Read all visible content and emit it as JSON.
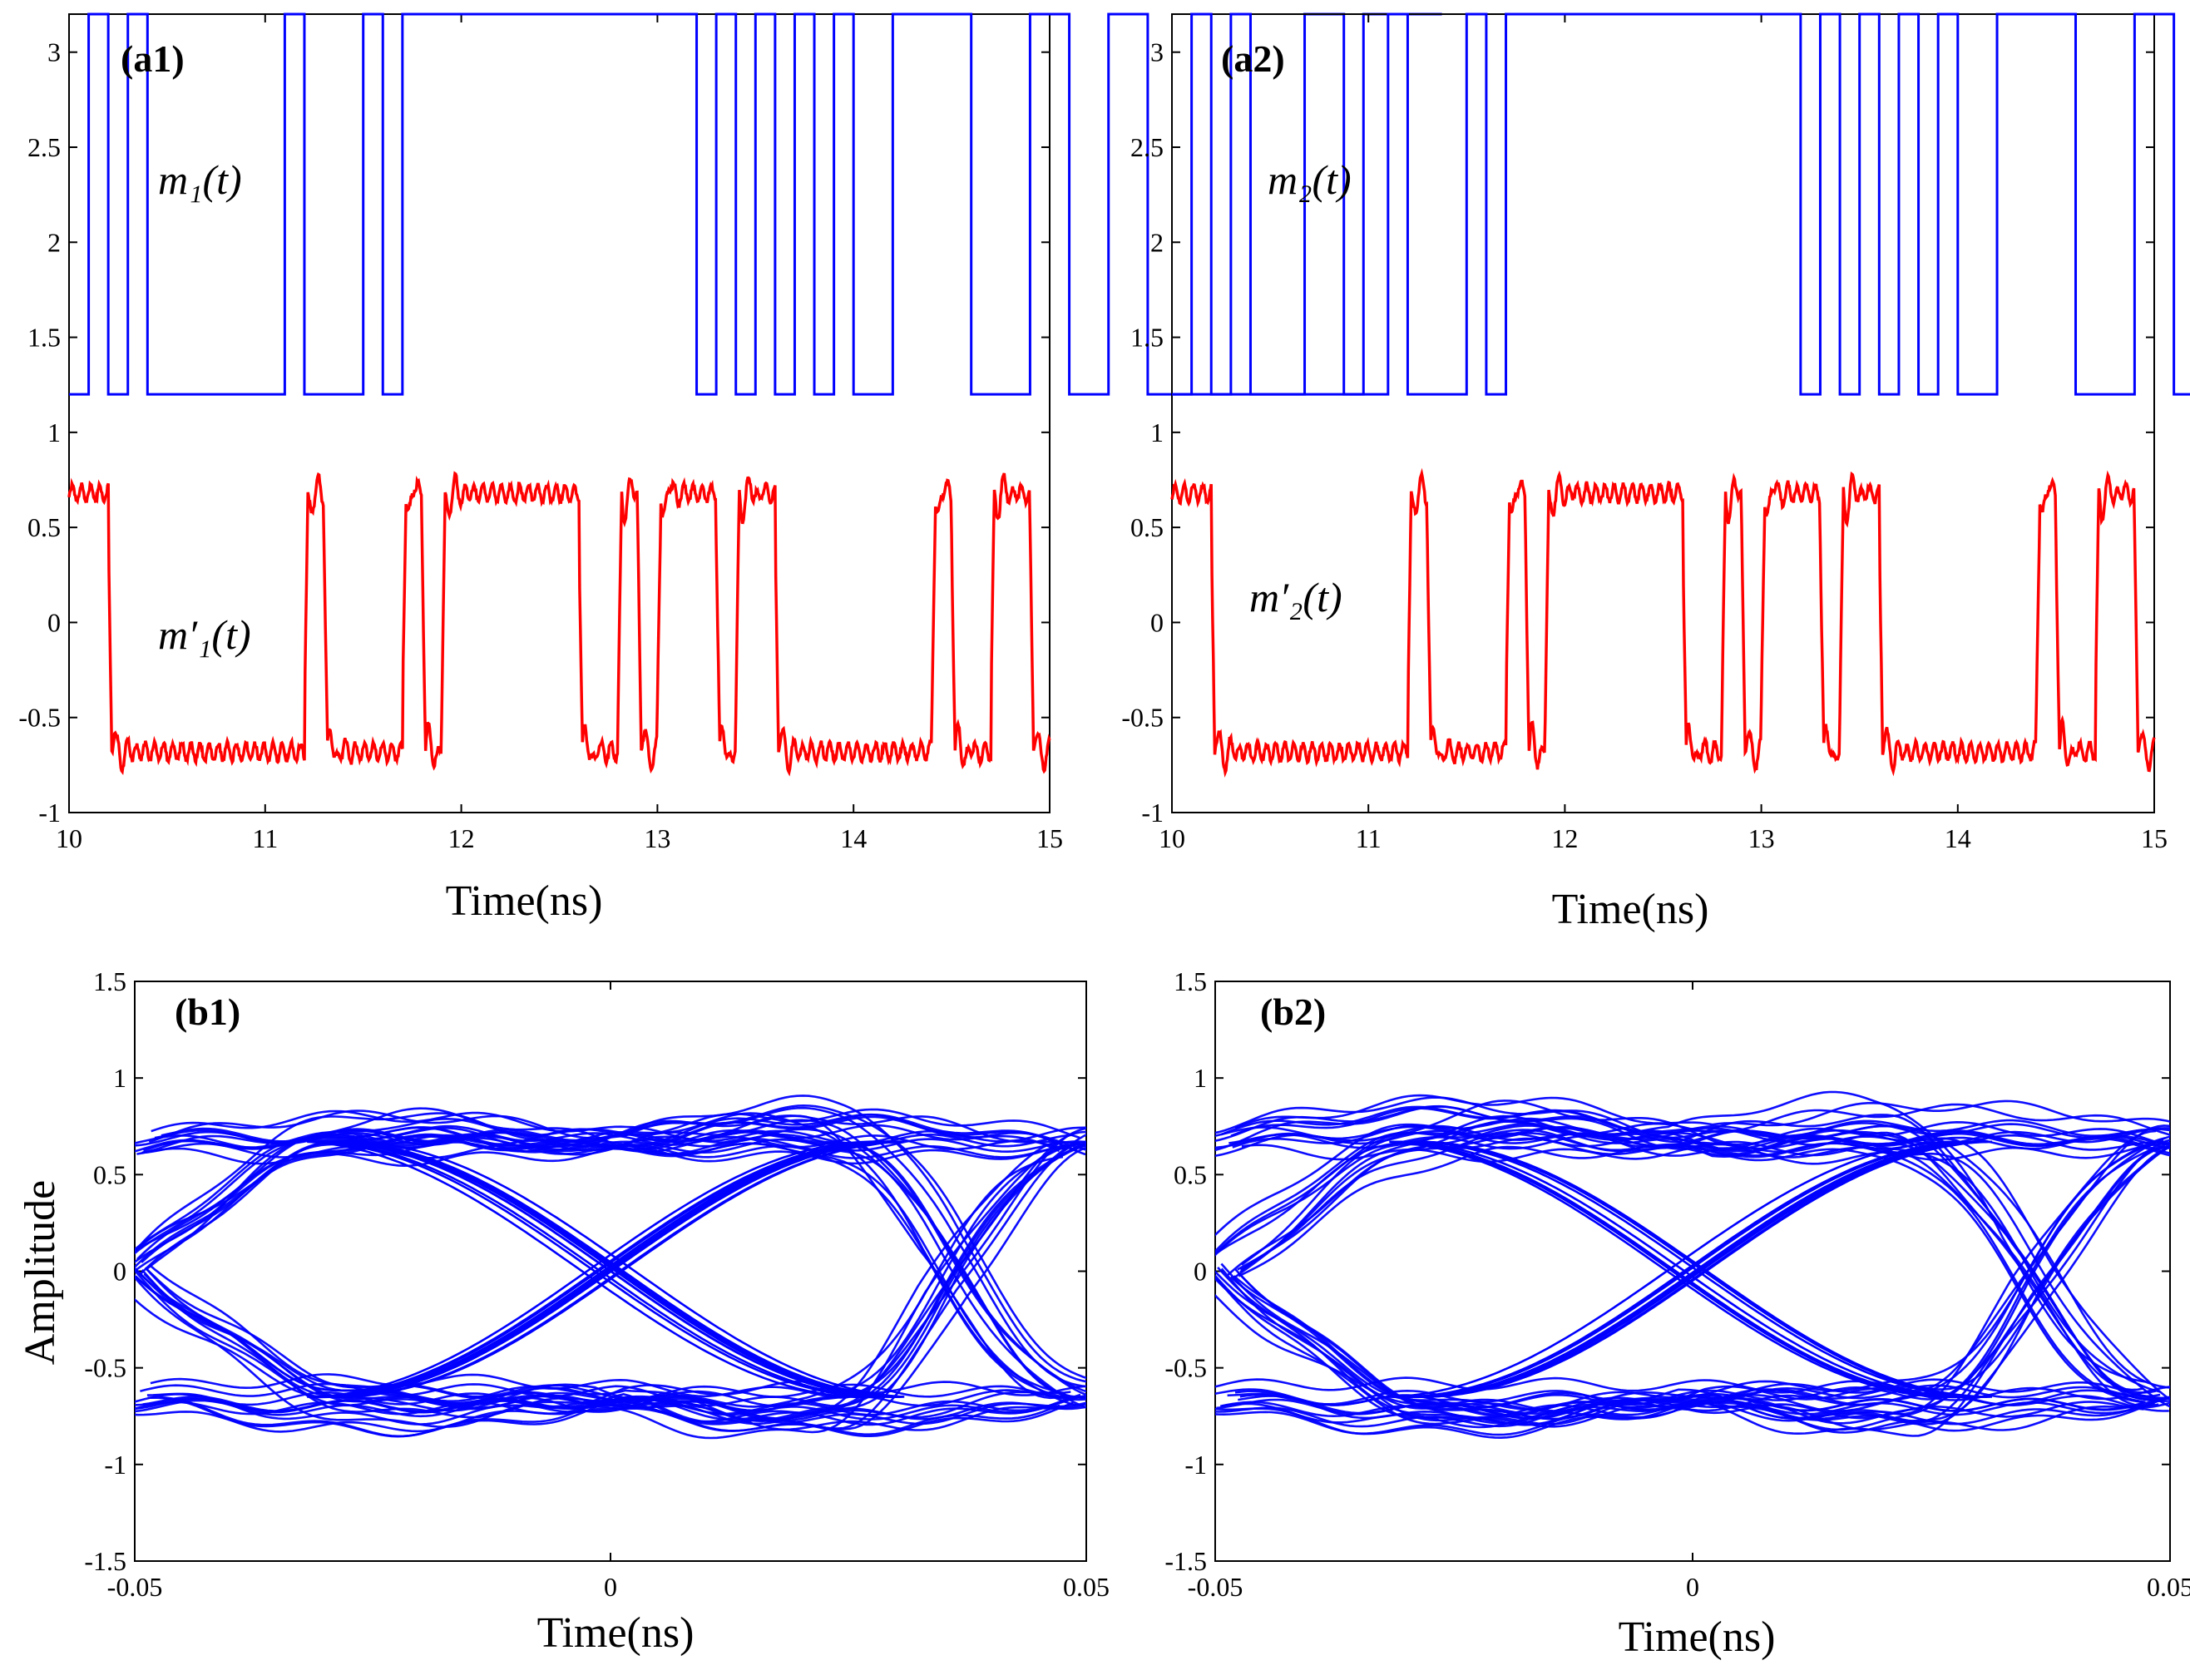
{
  "colors": {
    "digital": "#0000ff",
    "analog": "#ff0000",
    "eye": "#0000ff",
    "axis": "#000000"
  },
  "chart_data": [
    {
      "id": "a1",
      "type": "line",
      "panel_label": "(a1)",
      "xlabel": "Time(ns)",
      "ylabel": "",
      "xlim": [
        10,
        15
      ],
      "ylim": [
        -1,
        3.2
      ],
      "xticks": [
        10,
        11,
        12,
        13,
        14,
        15
      ],
      "xtick_labels": [
        "10",
        "11",
        "12",
        "13",
        "14",
        "15"
      ],
      "yticks": [
        -1,
        -0.5,
        0,
        0.5,
        1,
        1.5,
        2,
        2.5,
        3
      ],
      "ytick_labels": [
        "-1",
        "-0.5",
        "0",
        "0.5",
        "1",
        "1.5",
        "2",
        "2.5",
        "3"
      ],
      "bit_period": 0.1,
      "digital_low": 1.2,
      "digital_high": 3.2,
      "analog_low": -0.68,
      "analog_high": 0.68,
      "annotations": {
        "digital": "m₁(t)",
        "analog": "m′₁(t)"
      },
      "series": [
        {
          "name": "m1(t)",
          "role": "digital",
          "bits": [
            0,
            1,
            0,
            1,
            0,
            0,
            0,
            0,
            0,
            0,
            0,
            1,
            0,
            0,
            0,
            1,
            0,
            1,
            1,
            1,
            1,
            1,
            1,
            1,
            1,
            1,
            1,
            1,
            1,
            1,
            1,
            1,
            0,
            1,
            0,
            1,
            0,
            1,
            0,
            1,
            0,
            0,
            1,
            1,
            1,
            1,
            0,
            0,
            0,
            1,
            1,
            0,
            0,
            1,
            1,
            0,
            0,
            0,
            0,
            0,
            0,
            0,
            0,
            1,
            1,
            0,
            1,
            1,
            1,
            1
          ]
        },
        {
          "name": "m'1(t)",
          "role": "analog",
          "bits": [
            1,
            1,
            0,
            0,
            0,
            0,
            0,
            0,
            0,
            0,
            0,
            0,
            1,
            0,
            0,
            0,
            0,
            1,
            0,
            1,
            1,
            1,
            1,
            1,
            1,
            1,
            0,
            0,
            1,
            0,
            1,
            1,
            1,
            0,
            1,
            1,
            0,
            0,
            0,
            0,
            0,
            0,
            0,
            0,
            1,
            0,
            0,
            1,
            1,
            0,
            0,
            0,
            0,
            0,
            0,
            0,
            0,
            0,
            0,
            0,
            0,
            0,
            0,
            1,
            1,
            0,
            0,
            0,
            1,
            1
          ]
        }
      ]
    },
    {
      "id": "a2",
      "type": "line",
      "panel_label": "(a2)",
      "xlabel": "Time(ns)",
      "ylabel": "",
      "xlim": [
        10,
        15
      ],
      "ylim": [
        -1,
        3.2
      ],
      "xticks": [
        10,
        11,
        12,
        13,
        14,
        15
      ],
      "xtick_labels": [
        "10",
        "11",
        "12",
        "13",
        "14",
        "15"
      ],
      "yticks": [
        -1,
        -0.5,
        0,
        0.5,
        1,
        1.5,
        2,
        2.5,
        3
      ],
      "ytick_labels": [
        "-1",
        "-0.5",
        "0",
        "0.5",
        "1",
        "1.5",
        "2",
        "2.5",
        "3"
      ],
      "bit_period": 0.1,
      "digital_low": 1.2,
      "digital_high": 3.2,
      "analog_low": -0.68,
      "analog_high": 0.68,
      "annotations": {
        "digital": "m₂(t)",
        "analog": "m′₂(t)"
      },
      "series": [
        {
          "name": "m2(t)",
          "role": "digital",
          "bits": [
            0,
            1,
            0,
            1,
            0,
            0,
            0,
            0,
            0,
            0,
            0,
            1,
            0,
            0,
            0,
            1,
            0,
            1,
            1,
            1,
            1,
            1,
            1,
            1,
            1,
            1,
            1,
            1,
            1,
            1,
            1,
            1,
            0,
            1,
            0,
            1,
            0,
            1,
            0,
            1,
            0,
            0,
            1,
            1,
            1,
            1,
            0,
            0,
            0,
            1,
            1,
            0,
            0,
            1,
            1,
            0,
            0,
            0,
            0,
            0,
            0,
            0,
            0,
            1,
            1,
            0,
            1,
            1,
            1,
            1
          ]
        },
        {
          "name": "m'2(t)",
          "role": "analog",
          "bits": [
            1,
            1,
            0,
            0,
            0,
            0,
            0,
            0,
            0,
            0,
            0,
            0,
            1,
            0,
            0,
            0,
            0,
            1,
            0,
            1,
            1,
            1,
            1,
            1,
            1,
            1,
            0,
            0,
            1,
            0,
            1,
            1,
            1,
            0,
            1,
            1,
            0,
            0,
            0,
            0,
            0,
            0,
            0,
            0,
            1,
            0,
            0,
            1,
            1,
            0,
            0,
            0,
            0,
            0,
            0,
            0,
            0,
            0,
            0,
            0,
            0,
            0,
            0,
            1,
            1,
            0,
            0,
            0,
            1,
            1
          ]
        }
      ]
    },
    {
      "id": "b1",
      "type": "line",
      "subtype": "eye-diagram",
      "panel_label": "(b1)",
      "xlabel": "Time(ns)",
      "ylabel": "Amplitude",
      "xlim": [
        -0.05,
        0.05
      ],
      "ylim": [
        -1.5,
        1.5
      ],
      "xticks": [
        -0.05,
        0,
        0.05
      ],
      "xtick_labels": [
        "-0.05",
        "0",
        "0.05"
      ],
      "yticks": [
        -1.5,
        -1,
        -0.5,
        0,
        0.5,
        1,
        1.5
      ],
      "ytick_labels": [
        "-1.5",
        "-1",
        "-0.5",
        "0",
        "0.5",
        "1",
        "1.5"
      ],
      "levels": [
        -0.65,
        0.67
      ],
      "crossings_ns": [
        -0.05,
        0.0,
        0.05
      ],
      "max_overshoot": 0.92,
      "traces_per_pattern": 6,
      "seed": 11
    },
    {
      "id": "b2",
      "type": "line",
      "subtype": "eye-diagram",
      "panel_label": "(b2)",
      "xlabel": "Time(ns)",
      "ylabel": "",
      "xlim": [
        -0.05,
        0.05
      ],
      "ylim": [
        -1.5,
        1.5
      ],
      "xticks": [
        -0.05,
        0,
        0.05
      ],
      "xtick_labels": [
        "-0.05",
        "0",
        "0.05"
      ],
      "yticks": [
        -1.5,
        -1,
        -0.5,
        0,
        0.5,
        1,
        1.5
      ],
      "ytick_labels": [
        "-1.5",
        "-1",
        "-0.5",
        "0",
        "0.5",
        "1",
        "1.5"
      ],
      "levels": [
        -0.65,
        0.67
      ],
      "crossings_ns": [
        -0.05,
        0.0,
        0.05
      ],
      "max_overshoot": 0.92,
      "traces_per_pattern": 6,
      "seed": 23
    }
  ]
}
